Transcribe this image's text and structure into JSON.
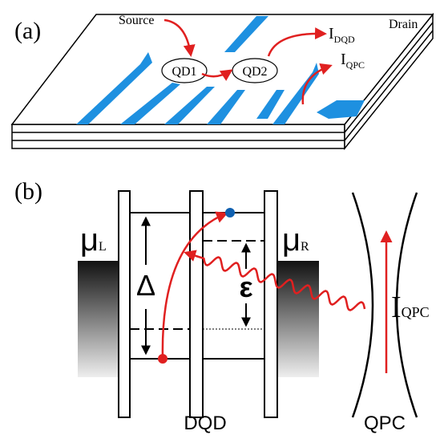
{
  "panel_a": {
    "label": "(a)",
    "source": "Source",
    "drain": "Drain",
    "dot1": "QD1",
    "dot2": "QD2",
    "current_dqd": {
      "symbol": "I",
      "subscript": "DQD"
    },
    "current_qpc": {
      "symbol": "I",
      "subscript": "QPC"
    }
  },
  "panel_b": {
    "label": "(b)",
    "mu_left": {
      "symbol": "μ",
      "subscript": "L"
    },
    "mu_right": {
      "symbol": "μ",
      "subscript": "R"
    },
    "delta": "Δ",
    "epsilon": "ε",
    "current_qpc": {
      "symbol": "I",
      "subscript": "QPC"
    },
    "dqd_label": "DQD",
    "qpc_label": "QPC"
  }
}
